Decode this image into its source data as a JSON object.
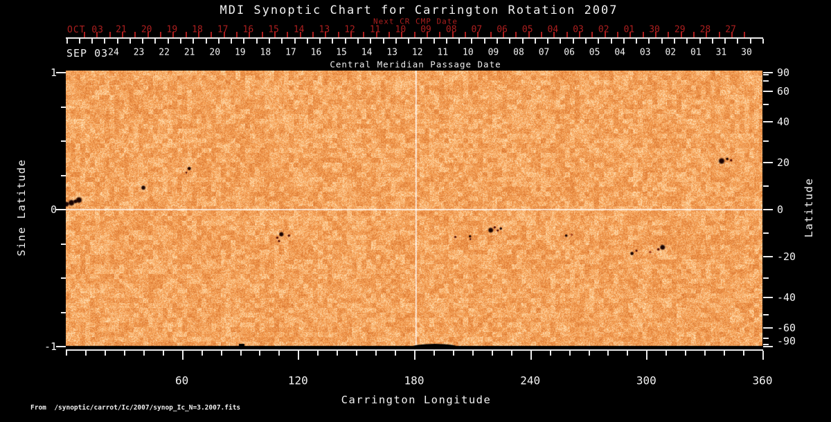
{
  "title": "MDI Synoptic Chart for Carrington Rotation 2007",
  "top_axis_red": {
    "axis_title": "Next CR CMP Date",
    "month_label": "OCT 03",
    "day_labels": [
      "21",
      "20",
      "19",
      "18",
      "17",
      "16",
      "15",
      "14",
      "13",
      "12",
      "11",
      "10",
      "09",
      "08",
      "07",
      "06",
      "05",
      "04",
      "03",
      "02",
      "01",
      "30",
      "29",
      "28",
      "27"
    ]
  },
  "top_axis_white": {
    "month_label": "SEP 03",
    "axis_title": "Central Meridian Passage Date",
    "day_labels": [
      "24",
      "23",
      "22",
      "21",
      "20",
      "19",
      "18",
      "17",
      "16",
      "15",
      "14",
      "13",
      "12",
      "11",
      "10",
      "09",
      "08",
      "07",
      "06",
      "05",
      "04",
      "03",
      "02",
      "01",
      "31",
      "30"
    ]
  },
  "left_axis": {
    "title": "Sine Latitude",
    "tick_labels": [
      "1",
      "0",
      "-1"
    ],
    "tick_values": [
      1,
      0,
      -1
    ],
    "minor_tick_values": [
      0.75,
      0.5,
      0.25,
      -0.25,
      -0.5,
      -0.75
    ]
  },
  "right_axis": {
    "title": "Latitude",
    "tick_labels": [
      "90",
      "60",
      "40",
      "20",
      "0",
      "-20",
      "-40",
      "-60",
      "-90"
    ],
    "tick_values": [
      90,
      60,
      40,
      20,
      0,
      -20,
      -40,
      -60,
      -90
    ],
    "minor_tick_values": [
      80,
      70,
      50,
      30,
      10,
      -10,
      -30,
      -50,
      -70,
      -80
    ]
  },
  "bottom_axis": {
    "title": "Carrington Longitude",
    "tick_labels": [
      "60",
      "120",
      "180",
      "240",
      "300",
      "360"
    ],
    "tick_values": [
      60,
      120,
      180,
      240,
      300,
      360
    ]
  },
  "source_note": "From  /synoptic/carrot/Ic/2007/synop_Ic_N=3.2007.fits",
  "colors": {
    "background": "#000000",
    "map_base": "#f7a256",
    "map_light": "#ffdeb0",
    "map_dark": "#db7832",
    "red_axis": "#ae1f1f",
    "white_text": "#f2f2f2",
    "grid_line": "#ffffff",
    "sunspot_dark": "#1a0302",
    "sunspot_medium": "#551008",
    "sunspot_faint": "#a03c1c",
    "south_gap": "#000000"
  },
  "chart_data": {
    "type": "heatmap",
    "title": "MDI Synoptic Chart for Carrington Rotation 2007",
    "xlabel": "Carrington Longitude",
    "ylabel_left": "Sine Latitude",
    "ylabel_right": "Latitude",
    "xlim": [
      0,
      360
    ],
    "ylim_sine_latitude": [
      -1,
      1
    ],
    "latitude_right_ticks": [
      90,
      60,
      40,
      20,
      0,
      -20,
      -40,
      -60,
      -90
    ],
    "grid": "crosshair only",
    "crosshair": {
      "longitude": 180,
      "sine_latitude": 0
    },
    "cmp_date_axis": {
      "month_start": "SEP 03",
      "days_right_to_left": "Aug 30 -> Sep 24"
    },
    "next_cr_cmp_axis": {
      "month_start": "OCT 03",
      "days_right_to_left": "Sep 27 -> Oct 21"
    },
    "south_pole_data_gap_below_sine_latitude": -0.98,
    "sunspots": [
      {
        "lon": 0.4,
        "sin_lat": 0.04,
        "r": 2.5,
        "shade": "dark"
      },
      {
        "lon": 2.9,
        "sin_lat": 0.05,
        "r": 3.0,
        "shade": "dark"
      },
      {
        "lon": 5.0,
        "sin_lat": 0.06,
        "r": 2.0,
        "shade": "dark"
      },
      {
        "lon": 6.8,
        "sin_lat": 0.07,
        "r": 3.0,
        "shade": "dark"
      },
      {
        "lon": 40.1,
        "sin_lat": 0.16,
        "r": 2.2,
        "shade": "dark"
      },
      {
        "lon": 62.3,
        "sin_lat": 0.27,
        "r": 1.0,
        "shade": "medium"
      },
      {
        "lon": 63.8,
        "sin_lat": 0.3,
        "r": 1.8,
        "shade": "dark"
      },
      {
        "lon": 109.3,
        "sin_lat": -0.205,
        "r": 1.3,
        "shade": "medium"
      },
      {
        "lon": 110.2,
        "sin_lat": -0.23,
        "r": 1.2,
        "shade": "medium"
      },
      {
        "lon": 111.4,
        "sin_lat": -0.18,
        "r": 2.3,
        "shade": "dark"
      },
      {
        "lon": 115.3,
        "sin_lat": -0.19,
        "r": 1.3,
        "shade": "medium"
      },
      {
        "lon": 201.3,
        "sin_lat": -0.2,
        "r": 1.2,
        "shade": "medium"
      },
      {
        "lon": 208.9,
        "sin_lat": -0.195,
        "r": 1.3,
        "shade": "dark"
      },
      {
        "lon": 209.1,
        "sin_lat": -0.215,
        "r": 1.0,
        "shade": "medium"
      },
      {
        "lon": 219.6,
        "sin_lat": -0.15,
        "r": 2.6,
        "shade": "dark"
      },
      {
        "lon": 221.6,
        "sin_lat": -0.13,
        "r": 1.3,
        "shade": "medium"
      },
      {
        "lon": 223.2,
        "sin_lat": -0.152,
        "r": 1.2,
        "shade": "medium"
      },
      {
        "lon": 224.8,
        "sin_lat": -0.138,
        "r": 1.4,
        "shade": "dark"
      },
      {
        "lon": 258.6,
        "sin_lat": -0.19,
        "r": 1.4,
        "shade": "dark"
      },
      {
        "lon": 261.5,
        "sin_lat": -0.183,
        "r": 1.2,
        "shade": "faint"
      },
      {
        "lon": 292.6,
        "sin_lat": -0.32,
        "r": 1.8,
        "shade": "dark"
      },
      {
        "lon": 294.9,
        "sin_lat": -0.3,
        "r": 1.2,
        "shade": "medium"
      },
      {
        "lon": 302.0,
        "sin_lat": -0.31,
        "r": 1.3,
        "shade": "faint"
      },
      {
        "lon": 306.2,
        "sin_lat": -0.29,
        "r": 1.4,
        "shade": "medium"
      },
      {
        "lon": 308.4,
        "sin_lat": -0.275,
        "r": 2.6,
        "shade": "dark"
      },
      {
        "lon": 338.9,
        "sin_lat": 0.355,
        "r": 3.0,
        "shade": "dark"
      },
      {
        "lon": 341.8,
        "sin_lat": 0.37,
        "r": 1.4,
        "shade": "dark"
      },
      {
        "lon": 343.8,
        "sin_lat": 0.36,
        "r": 1.3,
        "shade": "medium"
      }
    ]
  }
}
